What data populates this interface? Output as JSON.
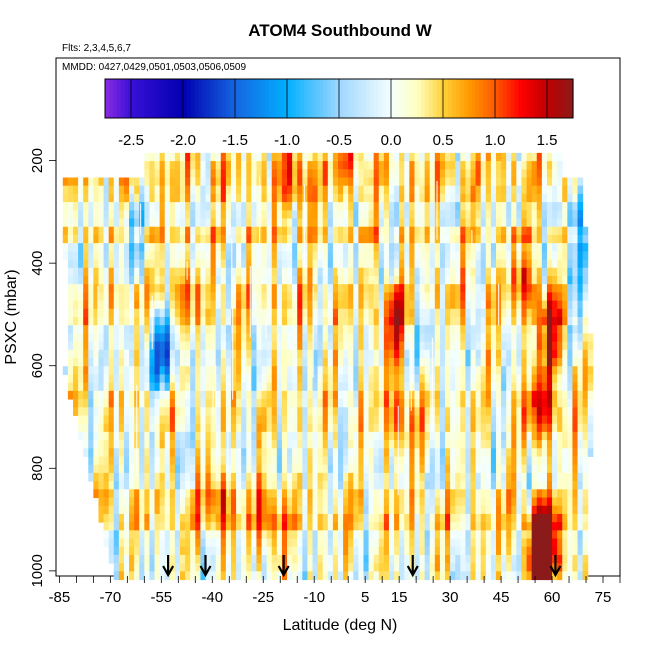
{
  "chart_data": {
    "type": "heatmap",
    "title": "ATOM4 Southbound W",
    "notes": [
      "Flts: 2,3,4,5,6,7",
      "MMDD: 0427,0429,0501,0503,0506,0509"
    ],
    "xlabel": "Latitude (deg N)",
    "ylabel": "PSXC (mbar)",
    "xlim": [
      -86,
      80
    ],
    "ylim": [
      1010,
      0
    ],
    "x_ticks": [
      -85,
      -70,
      -55,
      -40,
      -25,
      -10,
      5,
      15,
      30,
      45,
      60,
      75
    ],
    "x_minor_step": 5,
    "y_ticks": [
      200,
      400,
      600,
      800,
      1000
    ],
    "colorbar": {
      "ticks": [
        "-2.5",
        "-2.0",
        "-1.5",
        "-1.0",
        "-0.5",
        "0.0",
        "0.5",
        "1.0",
        "1.5"
      ],
      "range": [
        -2.75,
        1.75
      ],
      "stops": [
        {
          "v": -2.75,
          "color": "#8a2be2"
        },
        {
          "v": -2.5,
          "color": "#3a10d8"
        },
        {
          "v": -2.0,
          "color": "#0000b0"
        },
        {
          "v": -1.5,
          "color": "#1565e0"
        },
        {
          "v": -1.0,
          "color": "#00b0ff"
        },
        {
          "v": -0.5,
          "color": "#9fd6ff"
        },
        {
          "v": 0.0,
          "color": "#f4ffff"
        },
        {
          "v": 0.25,
          "color": "#ffffc0"
        },
        {
          "v": 0.5,
          "color": "#ffd23a"
        },
        {
          "v": 0.75,
          "color": "#ff9a00"
        },
        {
          "v": 1.0,
          "color": "#ff5a00"
        },
        {
          "v": 1.25,
          "color": "#ff0000"
        },
        {
          "v": 1.5,
          "color": "#c00000"
        },
        {
          "v": 1.75,
          "color": "#8b1a1a"
        }
      ]
    },
    "data_extent": {
      "lat": [
        -84,
        72
      ],
      "pressure": [
        185,
        1005
      ]
    },
    "arrows_lat": [
      -53,
      -42,
      -19,
      19,
      61
    ],
    "hotspots": [
      {
        "lat": 57,
        "p": 975,
        "value": 1.6
      },
      {
        "lat": 58,
        "p": 940,
        "value": 1.3
      },
      {
        "lat": 57,
        "p": 680,
        "value": 1.2
      },
      {
        "lat": 60,
        "p": 540,
        "value": 1.2
      },
      {
        "lat": 52,
        "p": 430,
        "value": 0.9
      },
      {
        "lat": -38,
        "p": 860,
        "value": 0.9
      },
      {
        "lat": -23,
        "p": 900,
        "value": 0.8
      },
      {
        "lat": 14,
        "p": 520,
        "value": 0.9
      },
      {
        "lat": 15,
        "p": 700,
        "value": 0.8
      },
      {
        "lat": -15,
        "p": 250,
        "value": 0.8
      },
      {
        "lat": 0,
        "p": 190,
        "value": 0.6
      },
      {
        "lat": -48,
        "p": 450,
        "value": 0.6
      },
      {
        "lat": -55,
        "p": 570,
        "value": -1.4
      },
      {
        "lat": 69,
        "p": 310,
        "value": -1.2
      },
      {
        "lat": 23,
        "p": 530,
        "value": -0.5
      },
      {
        "lat": 68,
        "p": 450,
        "value": -0.8
      },
      {
        "lat": -64,
        "p": 330,
        "value": -0.6
      }
    ]
  }
}
